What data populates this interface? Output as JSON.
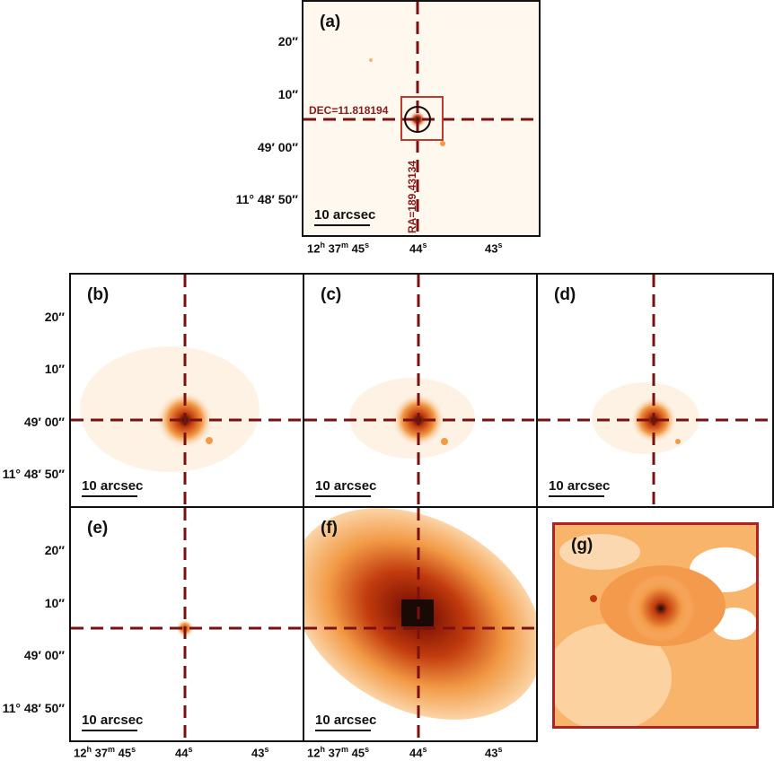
{
  "panels": {
    "a": {
      "label": "(a)",
      "scale": "10 arcsec",
      "dec_text": "DEC=11.818194",
      "ra_text": "RA=189.43134"
    },
    "b": {
      "label": "(b)",
      "scale": "10 arcsec"
    },
    "c": {
      "label": "(c)",
      "scale": "10 arcsec"
    },
    "d": {
      "label": "(d)",
      "scale": "10 arcsec"
    },
    "e": {
      "label": "(e)",
      "scale": "10 arcsec"
    },
    "f": {
      "label": "(f)",
      "scale": "10 arcsec"
    },
    "g": {
      "label": "(g)"
    }
  },
  "axes": {
    "dec_ticks": [
      "20″",
      "10″",
      "49′ 00″",
      "11° 48′ 50″"
    ],
    "ra_ticks": [
      {
        "main": "12",
        "sup1": "h",
        "mid": " 37",
        "sup2": "m",
        "tail": " 45",
        "sup3": "s"
      },
      {
        "main": "44",
        "sup1": "s"
      },
      {
        "main": "43",
        "sup1": "s"
      }
    ]
  },
  "colors": {
    "crosshair": "#7b1010",
    "box": "#c0392b",
    "frame_g": "#b22222",
    "heat_low": "#fdf2e4",
    "heat_mid": "#f29a45",
    "heat_high": "#c23b0e",
    "core": "#1a0a05"
  }
}
